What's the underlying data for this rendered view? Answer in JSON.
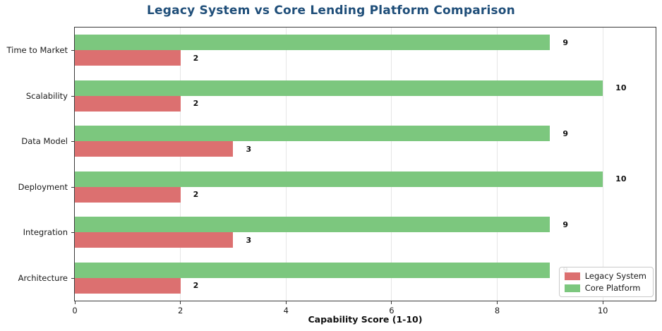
{
  "title": "Legacy System vs Core Lending Platform Comparison",
  "chart_data": {
    "type": "bar",
    "orientation": "horizontal",
    "title": "Legacy System vs Core Lending Platform Comparison",
    "xlabel": "Capability Score (1-10)",
    "categories": [
      "Time to Market",
      "Scalability",
      "Data Model",
      "Deployment",
      "Integration",
      "Architecture"
    ],
    "series": [
      {
        "name": "Legacy System",
        "color": "#dc7070",
        "values": [
          2,
          2,
          3,
          2,
          3,
          2
        ]
      },
      {
        "name": "Core Platform",
        "color": "#7cc77e",
        "values": [
          9,
          10,
          9,
          10,
          9,
          9
        ]
      }
    ],
    "bar_order_top_to_bottom": [
      1,
      0
    ],
    "value_labels": true,
    "xlim": [
      0,
      11
    ],
    "xticks": [
      0,
      2,
      4,
      6,
      8,
      10
    ],
    "grid": true,
    "legend_position": "lower right"
  },
  "legend": {
    "items": [
      {
        "label": "Legacy System",
        "color": "#dc7070"
      },
      {
        "label": "Core Platform",
        "color": "#7cc77e"
      }
    ]
  },
  "colors": {
    "title": "#1f4e79",
    "legacy_bar": "#dc7070",
    "core_bar": "#7cc77e",
    "gridline": "#e6e6e6",
    "axis": "#3a3a3a",
    "text": "#1a1a1a"
  }
}
